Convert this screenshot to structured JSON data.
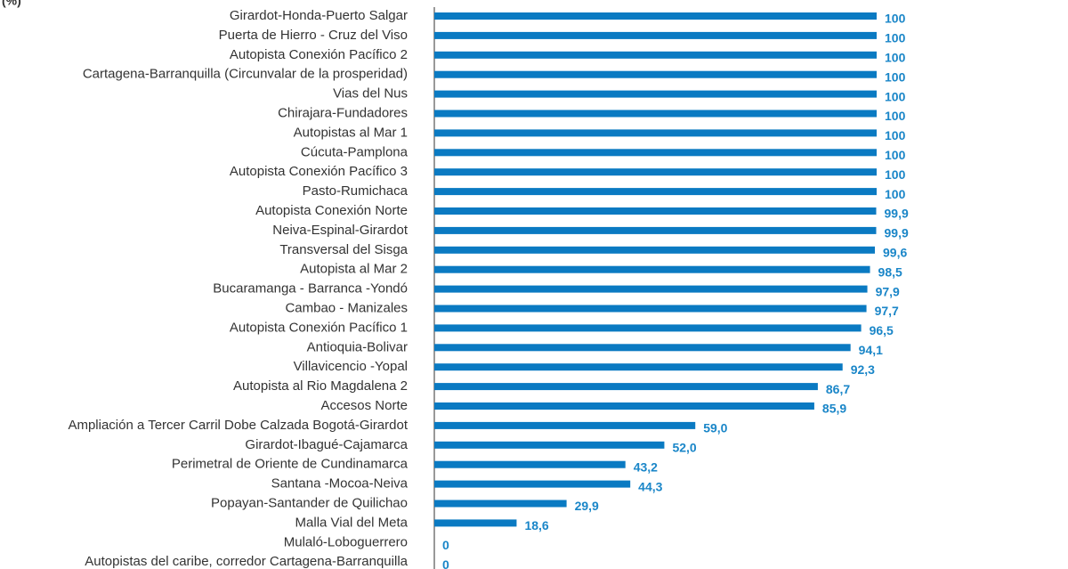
{
  "chart_data": {
    "type": "bar",
    "orientation": "horizontal",
    "title": "(%)",
    "categories": [
      "Girardot-Honda-Puerto Salgar",
      "Puerta de Hierro - Cruz del Viso",
      "Autopista Conexión Pacífico 2",
      "Cartagena-Barranquilla (Circunvalar de la prosperidad)",
      "Vias del Nus",
      "Chirajara-Fundadores",
      "Autopistas al Mar 1",
      "Cúcuta-Pamplona",
      "Autopista Conexión Pacífico 3",
      "Pasto-Rumichaca",
      "Autopista Conexión Norte",
      "Neiva-Espinal-Girardot",
      "Transversal del Sisga",
      "Autopista al Mar 2",
      "Bucaramanga - Barranca -Yondó",
      "Cambao - Manizales",
      "Autopista Conexión Pacífico 1",
      "Antioquia-Bolivar",
      "Villavicencio -Yopal",
      "Autopista al Rio Magdalena 2",
      "Accesos Norte",
      "Ampliación a Tercer Carril Dobe Calzada Bogotá-Girardot",
      "Girardot-Ibagué-Cajamarca",
      "Perimetral de Oriente de Cundinamarca",
      "Santana -Mocoa-Neiva",
      "Popayan-Santander de Quilichao",
      "Malla Vial del Meta",
      "Mulaló-Loboguerrero",
      "Autopistas del caribe, corredor Cartagena-Barranquilla"
    ],
    "values": [
      100,
      100,
      100,
      100,
      100,
      100,
      100,
      100,
      100,
      100,
      99.9,
      99.9,
      99.6,
      98.5,
      97.9,
      97.7,
      96.5,
      94.1,
      92.3,
      86.7,
      85.9,
      59.0,
      52.0,
      43.2,
      44.3,
      29.9,
      18.6,
      0,
      0
    ],
    "value_labels": [
      "100",
      "100",
      "100",
      "100",
      "100",
      "100",
      "100",
      "100",
      "100",
      "100",
      "99,9",
      "99,9",
      "99,6",
      "98,5",
      "97,9",
      "97,7",
      "96,5",
      "94,1",
      "92,3",
      "86,7",
      "85,9",
      "59,0",
      "52,0",
      "43,2",
      "44,3",
      "29,9",
      "18,6",
      "0",
      "0"
    ],
    "color": "#0a7ac2",
    "xlim": [
      0,
      100
    ]
  }
}
